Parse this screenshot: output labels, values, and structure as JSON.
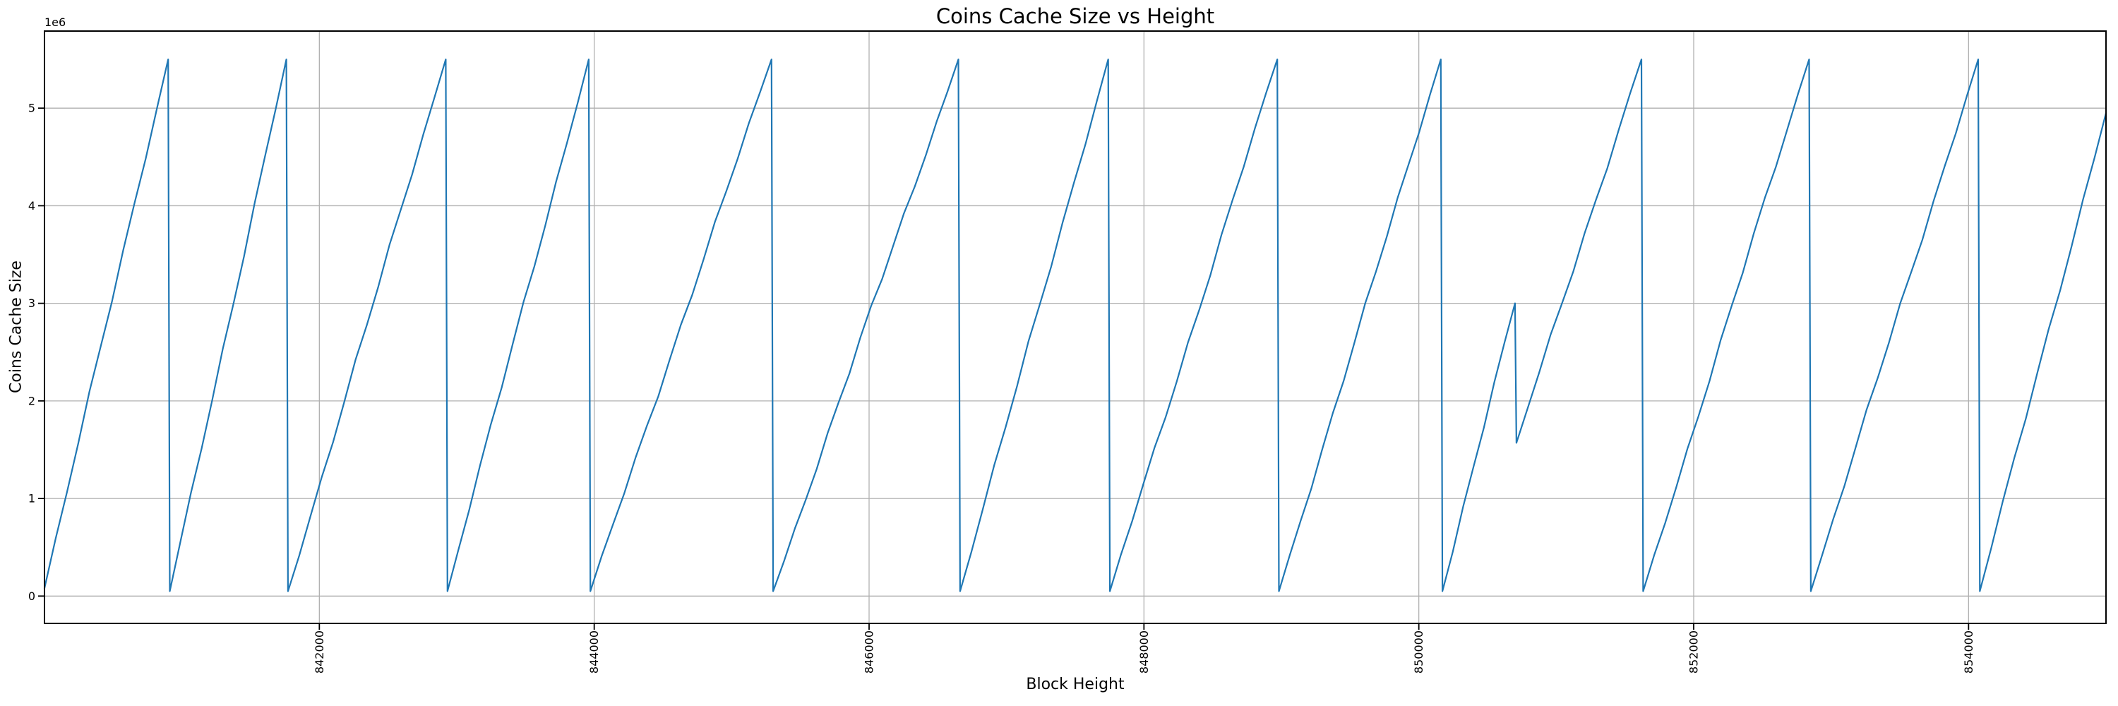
{
  "style": {
    "background_color": "#ffffff",
    "grid_color": "#b0b0b0",
    "spine_color": "#000000",
    "text_color": "#000000",
    "line_color": "#1f77b4"
  },
  "chart_data": {
    "type": "line",
    "title": "Coins Cache Size vs Height",
    "xlabel": "Block Height",
    "ylabel": "Coins Cache Size",
    "y_scale_offset_label": "1e6",
    "grid": true,
    "legend_position": "none",
    "xlim": [
      840000,
      855000
    ],
    "ylim": [
      -280000,
      5790000
    ],
    "x_ticks": [
      842000,
      844000,
      846000,
      848000,
      850000,
      852000,
      854000
    ],
    "x_tick_labels": [
      "842000",
      "844000",
      "846000",
      "848000",
      "850000",
      "852000",
      "854000"
    ],
    "x_tick_rotation_deg": 90,
    "y_ticks": [
      0,
      1000000,
      2000000,
      3000000,
      4000000,
      5000000
    ],
    "y_tick_labels": [
      "0",
      "1",
      "2",
      "3",
      "4",
      "5"
    ],
    "series": [
      {
        "name": "Coins Cache Size",
        "color": "#1f77b4",
        "points": [
          [
            840000,
            80000
          ],
          [
            840900,
            5500000
          ],
          [
            840912,
            50000
          ],
          [
            841760,
            5500000
          ],
          [
            841772,
            50000
          ],
          [
            842920,
            5500000
          ],
          [
            842932,
            50000
          ],
          [
            843960,
            5500000
          ],
          [
            843972,
            50000
          ],
          [
            845290,
            5500000
          ],
          [
            845302,
            50000
          ],
          [
            846650,
            5500000
          ],
          [
            846662,
            50000
          ],
          [
            847740,
            5500000
          ],
          [
            847752,
            50000
          ],
          [
            848970,
            5500000
          ],
          [
            848982,
            50000
          ],
          [
            850160,
            5500000
          ],
          [
            850172,
            50000
          ],
          [
            850700,
            3000000
          ],
          [
            850710,
            1570000
          ],
          [
            851620,
            5500000
          ],
          [
            851632,
            50000
          ],
          [
            852840,
            5500000
          ],
          [
            852852,
            50000
          ],
          [
            854070,
            5500000
          ],
          [
            854082,
            50000
          ],
          [
            855000,
            4950000
          ]
        ]
      }
    ]
  }
}
